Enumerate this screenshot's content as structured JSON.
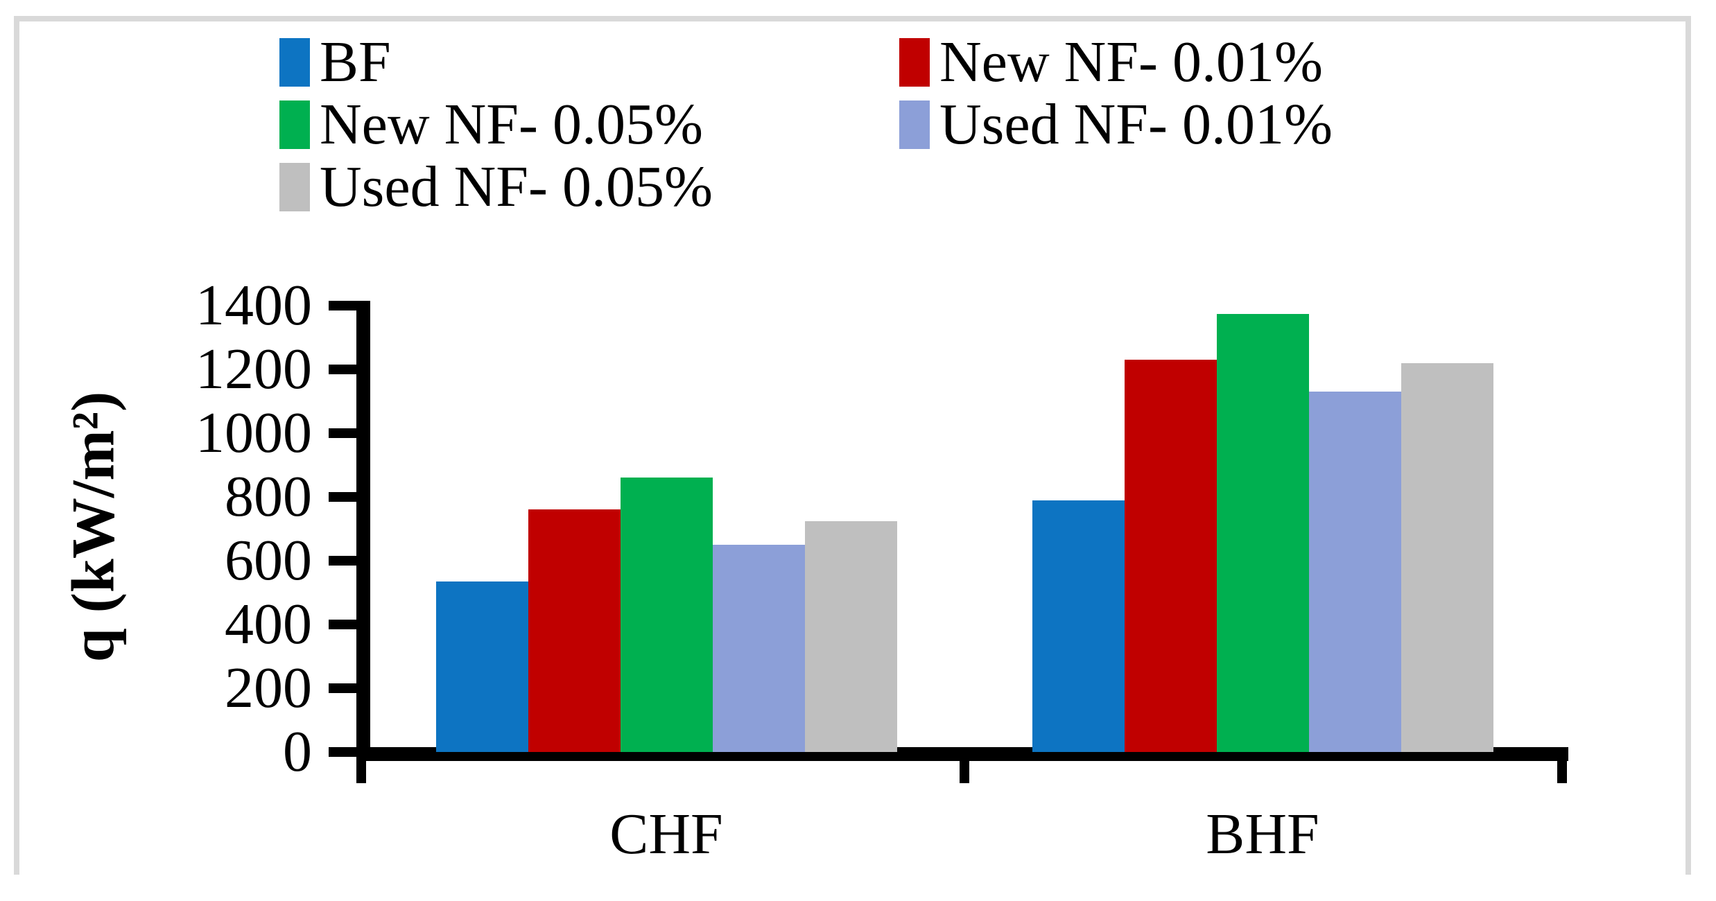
{
  "figure": {
    "background": "#ffffff",
    "border_color": "#d9d9d9",
    "axis_color": "#000000",
    "text_color": "#000000"
  },
  "chart_data": {
    "type": "bar",
    "title": "",
    "categories": [
      "CHF",
      "BHF"
    ],
    "series": [
      {
        "name": "BF",
        "color": "#0d74c2",
        "values": [
          535,
          790
        ]
      },
      {
        "name": "New NF- 0.01%",
        "color": "#c00000",
        "values": [
          760,
          1230
        ]
      },
      {
        "name": "New NF- 0.05%",
        "color": "#00b050",
        "values": [
          860,
          1375
        ]
      },
      {
        "name": "Used NF- 0.01%",
        "color": "#8c9fd8",
        "values": [
          650,
          1130
        ]
      },
      {
        "name": "Used NF- 0.05%",
        "color": "#bfbfbf",
        "values": [
          725,
          1220
        ]
      }
    ],
    "xlabel": "",
    "ylabel": "q (kW/m²)",
    "ylim": [
      0,
      1400
    ],
    "ytick_step": 200,
    "grid": false,
    "legend_position": "top-left, 2 columns"
  }
}
